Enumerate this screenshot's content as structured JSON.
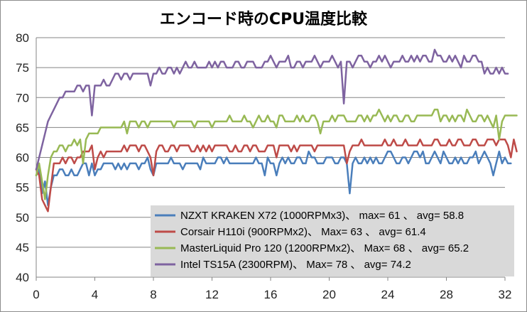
{
  "chart_data": {
    "type": "line",
    "title": "エンコード時のCPU温度比較",
    "xlabel": "",
    "ylabel": "",
    "xlim": [
      0,
      32
    ],
    "ylim": [
      40,
      80
    ],
    "x_ticks": [
      "0",
      "4",
      "8",
      "12",
      "16",
      "20",
      "24",
      "28",
      "32"
    ],
    "y_ticks": [
      "40",
      "45",
      "50",
      "55",
      "60",
      "65",
      "70",
      "75",
      "80"
    ],
    "grid": "horizontal",
    "legend_position": "bottom-right",
    "x_step": 0.2,
    "series": [
      {
        "name": "NZXT KRAKEN X72 (1000RPMx3)、 max= 61 、 avg= 58.8",
        "color": "#4a7ebb",
        "values": [
          57,
          58,
          54,
          56,
          52,
          55,
          57,
          57,
          58,
          58,
          57,
          57,
          58,
          57,
          57,
          58,
          59,
          59,
          57,
          59,
          57,
          58,
          58,
          59,
          59,
          59,
          59,
          58,
          59,
          58,
          59,
          58,
          59,
          59,
          59,
          58,
          59,
          59,
          60,
          58,
          57,
          59,
          59,
          59,
          59,
          59,
          60,
          59,
          59,
          59,
          58,
          59,
          59,
          59,
          59,
          59,
          58,
          60,
          59,
          59,
          59,
          59,
          60,
          60,
          59,
          60,
          59,
          59,
          59,
          59,
          59,
          59,
          59,
          59,
          59,
          60,
          59,
          59,
          57,
          60,
          59,
          59,
          57,
          59,
          60,
          59,
          60,
          59,
          59,
          60,
          60,
          59,
          59,
          61,
          60,
          60,
          59,
          59,
          59,
          60,
          60,
          60,
          59,
          59,
          60,
          60,
          59,
          54,
          59,
          60,
          59,
          59,
          60,
          59,
          60,
          59,
          60,
          59,
          59,
          60,
          61,
          61,
          60,
          59,
          59,
          60,
          60,
          59,
          60,
          61,
          61,
          60,
          61,
          59,
          59,
          60,
          61,
          60,
          59,
          61,
          60,
          59,
          59,
          60,
          59,
          60,
          59,
          59,
          60,
          60,
          61,
          59,
          60,
          61,
          60,
          59,
          57,
          59,
          61,
          59,
          60,
          59,
          59
        ]
      },
      {
        "name": "Corsair H110i (900RPMx2)、 Max= 63 、 avg= 61.4",
        "color": "#be4b48",
        "values": [
          58,
          57,
          53,
          52,
          51,
          55,
          59,
          59,
          59,
          60,
          59,
          60,
          60,
          59,
          60,
          60,
          61,
          61,
          61,
          62,
          58,
          60,
          61,
          60,
          61,
          61,
          61,
          61,
          61,
          61,
          62,
          61,
          62,
          62,
          62,
          61,
          62,
          62,
          61,
          60,
          57,
          61,
          62,
          62,
          61,
          61,
          62,
          62,
          61,
          62,
          62,
          62,
          62,
          61,
          61,
          62,
          61,
          62,
          61,
          62,
          61,
          62,
          62,
          62,
          62,
          62,
          61,
          61,
          62,
          61,
          61,
          62,
          62,
          61,
          62,
          62,
          61,
          61,
          61,
          62,
          62,
          62,
          60,
          62,
          62,
          62,
          62,
          61,
          62,
          61,
          62,
          62,
          62,
          62,
          62,
          61,
          62,
          62,
          62,
          62,
          62,
          62,
          62,
          62,
          62,
          62,
          59,
          61,
          62,
          62,
          62,
          63,
          62,
          62,
          62,
          62,
          62,
          62,
          62,
          63,
          62,
          62,
          63,
          62,
          62,
          62,
          63,
          62,
          62,
          62,
          62,
          63,
          62,
          62,
          62,
          62,
          63,
          63,
          62,
          62,
          62,
          63,
          62,
          62,
          63,
          63,
          62,
          62,
          62,
          63,
          63,
          62,
          62,
          62,
          63,
          63,
          63,
          62,
          63,
          63,
          63,
          62,
          60,
          63,
          61
        ]
      },
      {
        "name": "MasterLiquid Pro 120 (1200RPMx2)、 Max= 68 、 avg= 65.2",
        "color": "#98b954",
        "values": [
          57,
          59,
          56,
          53,
          57,
          60,
          61,
          61,
          62,
          62,
          61,
          62,
          62,
          63,
          62,
          63,
          59,
          63,
          64,
          64,
          64,
          64,
          65,
          65,
          65,
          65,
          65,
          65,
          65,
          65,
          66,
          64,
          66,
          66,
          66,
          65,
          66,
          66,
          65,
          66,
          66,
          66,
          66,
          66,
          66,
          66,
          66,
          65,
          66,
          66,
          66,
          66,
          66,
          66,
          65,
          66,
          66,
          66,
          66,
          66,
          65,
          66,
          66,
          66,
          66,
          66,
          67,
          66,
          66,
          66,
          66,
          67,
          66,
          66,
          65,
          66,
          67,
          66,
          66,
          67,
          66,
          66,
          65,
          67,
          67,
          66,
          66,
          66,
          66,
          67,
          66,
          67,
          66,
          66,
          67,
          67,
          66,
          64,
          66,
          66,
          66,
          67,
          66,
          67,
          67,
          67,
          66,
          66,
          66,
          66,
          67,
          67,
          66,
          67,
          66,
          67,
          67,
          68,
          67,
          66,
          67,
          66,
          67,
          67,
          66,
          66,
          67,
          67,
          66,
          66,
          67,
          67,
          67,
          67,
          67,
          67,
          68,
          68,
          66,
          67,
          67,
          66,
          67,
          66,
          67,
          67,
          66,
          68,
          67,
          66,
          66,
          67,
          67,
          66,
          67,
          66,
          65,
          67,
          63,
          66,
          67,
          67,
          67,
          67,
          67
        ]
      },
      {
        "name": "Intel TS15A (2300RPM)、 Max= 78 、 avg= 74.2",
        "color": "#7e63a0",
        "values": [
          58,
          60,
          62,
          64,
          66,
          67,
          68,
          69,
          70,
          70,
          71,
          71,
          71,
          71,
          72,
          72,
          71,
          72,
          72,
          67,
          72,
          72,
          72,
          73,
          72,
          72,
          73,
          74,
          74,
          73,
          74,
          74,
          73,
          74,
          74,
          74,
          74,
          74,
          74,
          72,
          74,
          74,
          75,
          74,
          74,
          75,
          75,
          74,
          75,
          74,
          75,
          76,
          75,
          75,
          76,
          75,
          75,
          75,
          75,
          76,
          75,
          76,
          75,
          76,
          76,
          75,
          75,
          75,
          76,
          76,
          75,
          75,
          76,
          76,
          76,
          75,
          75,
          75,
          76,
          76,
          77,
          76,
          75,
          76,
          76,
          76,
          77,
          75,
          75,
          76,
          76,
          75,
          76,
          76,
          76,
          77,
          76,
          75,
          76,
          76,
          76,
          77,
          76,
          75,
          76,
          69,
          76,
          76,
          75,
          76,
          77,
          77,
          76,
          76,
          75,
          76,
          76,
          77,
          76,
          77,
          76,
          75,
          76,
          76,
          76,
          77,
          76,
          76,
          77,
          76,
          77,
          76,
          77,
          77,
          76,
          76,
          78,
          77,
          77,
          76,
          76,
          77,
          76,
          77,
          76,
          75,
          77,
          76,
          76,
          77,
          77,
          76,
          76,
          74,
          75,
          74,
          74,
          75,
          74,
          75,
          74,
          74
        ]
      }
    ]
  }
}
